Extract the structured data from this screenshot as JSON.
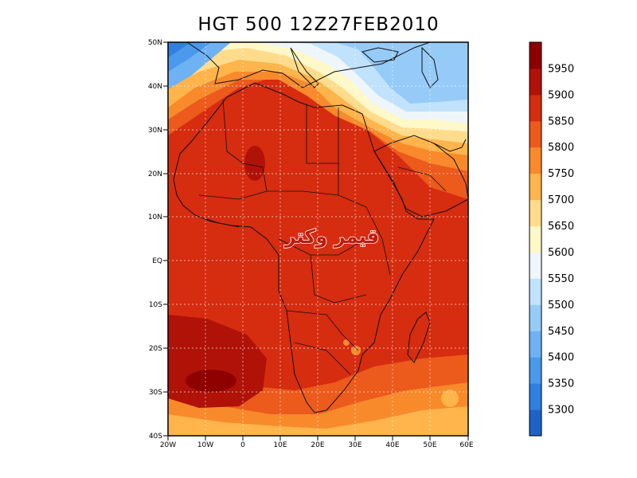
{
  "title": "HGT 500 12Z27FEB2010",
  "map": {
    "lat_labels": [
      "50N",
      "40N",
      "30N",
      "20N",
      "10N",
      "EQ",
      "10S",
      "20S",
      "30S",
      "40S"
    ],
    "lon_labels": [
      "20W",
      "10W",
      "0",
      "10E",
      "20E",
      "30E",
      "40E",
      "50E",
      "60E"
    ],
    "grid": true
  },
  "watermark": {
    "text": "قيمر وكتر"
  },
  "colorbar": {
    "levels": [
      "5300",
      "5350",
      "5400",
      "5450",
      "5500",
      "5550",
      "5600",
      "5650",
      "5700",
      "5750",
      "5800",
      "5850",
      "5900",
      "5950"
    ],
    "colors": [
      "#1e64c8",
      "#2f80e0",
      "#4b99ec",
      "#6eb2f4",
      "#96cbf8",
      "#c0e2fc",
      "#eef6fb",
      "#fff8c8",
      "#ffdc8c",
      "#ffb44c",
      "#f88a2c",
      "#ec5a1c",
      "#d62c10",
      "#b01208",
      "#8e0000"
    ]
  },
  "chart_data": {
    "type": "heatmap",
    "title": "HGT 500 12Z27FEB2010",
    "xlabel": "",
    "ylabel": "",
    "x_range": [
      -20,
      60
    ],
    "y_range": [
      -40,
      50
    ],
    "levels": [
      5300,
      5350,
      5400,
      5450,
      5500,
      5550,
      5600,
      5650,
      5700,
      5750,
      5800,
      5850,
      5900,
      5950
    ]
  }
}
